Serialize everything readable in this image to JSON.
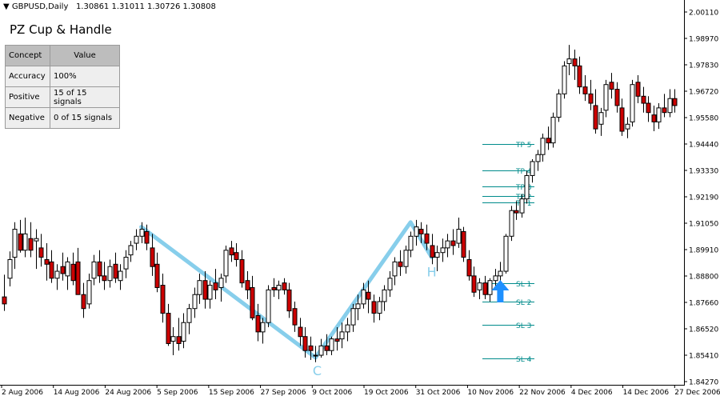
{
  "header": {
    "symbol_text": "GBPUSD,Daily",
    "ohlc_text": "1.30861 1.31011 1.30726 1.30808"
  },
  "panel": {
    "title": "PZ Cup & Handle",
    "columns": [
      "Concept",
      "Value"
    ],
    "rows": [
      {
        "concept": "Accuracy",
        "value": "100%"
      },
      {
        "concept": "Positive",
        "value": "15 of 15 signals"
      },
      {
        "concept": "Negative",
        "value": "0 of 15 signals"
      }
    ]
  },
  "colors": {
    "bull": "#ffffff",
    "bear": "#cc0000",
    "wick": "#000000",
    "pattern": "#87ceeb",
    "levels": "#008b8b",
    "signal_arrow": "#1e90ff",
    "accuracy_text": "#0000cc"
  },
  "chart_data": {
    "type": "candlestick",
    "y_ticks": [
      "2.00110",
      "1.98970",
      "1.97830",
      "1.96720",
      "1.95580",
      "1.94440",
      "1.93330",
      "1.92190",
      "1.91050",
      "1.89910",
      "1.88800",
      "1.87660",
      "1.86520",
      "1.85410",
      "1.84270"
    ],
    "ylim": [
      1.8427,
      2.0011
    ],
    "x_ticks": [
      "2 Aug 2006",
      "14 Aug 2006",
      "24 Aug 2006",
      "5 Sep 2006",
      "15 Sep 2006",
      "27 Sep 2006",
      "9 Oct 2006",
      "19 Oct 2006",
      "31 Oct 2006",
      "10 Nov 2006",
      "22 Nov 2006",
      "4 Dec 2006",
      "14 Dec 2006",
      "27 Dec 2006"
    ],
    "candles": [
      [
        1.879,
        1.8885,
        1.873,
        1.876
      ],
      [
        1.887,
        1.8985,
        1.8835,
        1.895
      ],
      [
        1.896,
        1.911,
        1.891,
        1.908
      ],
      [
        1.906,
        1.912,
        1.898,
        1.899
      ],
      [
        1.899,
        1.913,
        1.896,
        1.906
      ],
      [
        1.904,
        1.911,
        1.896,
        1.899
      ],
      [
        1.903,
        1.908,
        1.891,
        1.904
      ],
      [
        1.9,
        1.906,
        1.892,
        1.896
      ],
      [
        1.895,
        1.902,
        1.886,
        1.893
      ],
      [
        1.894,
        1.899,
        1.885,
        1.887
      ],
      [
        1.887,
        1.893,
        1.882,
        1.89
      ],
      [
        1.892,
        1.898,
        1.886,
        1.889
      ],
      [
        1.888,
        1.896,
        1.882,
        1.894
      ],
      [
        1.893,
        1.898,
        1.884,
        1.886
      ],
      [
        1.894,
        1.9,
        1.881,
        1.88
      ],
      [
        1.88,
        1.885,
        1.87,
        1.874
      ],
      [
        1.876,
        1.889,
        1.874,
        1.886
      ],
      [
        1.887,
        1.897,
        1.884,
        1.894
      ],
      [
        1.894,
        1.899,
        1.885,
        1.888
      ],
      [
        1.888,
        1.894,
        1.882,
        1.886
      ],
      [
        1.886,
        1.895,
        1.883,
        1.892
      ],
      [
        1.893,
        1.898,
        1.885,
        1.887
      ],
      [
        1.886,
        1.893,
        1.882,
        1.89
      ],
      [
        1.891,
        1.899,
        1.887,
        1.896
      ],
      [
        1.897,
        1.903,
        1.894,
        1.901
      ],
      [
        1.902,
        1.908,
        1.899,
        1.905
      ],
      [
        1.905,
        1.911,
        1.902,
        1.908
      ],
      [
        1.907,
        1.91,
        1.899,
        1.902
      ],
      [
        1.9,
        1.906,
        1.888,
        1.892
      ],
      [
        1.893,
        1.898,
        1.881,
        1.883
      ],
      [
        1.884,
        1.889,
        1.868,
        1.872
      ],
      [
        1.872,
        1.876,
        1.858,
        1.859
      ],
      [
        1.86,
        1.866,
        1.854,
        1.862
      ],
      [
        1.862,
        1.87,
        1.856,
        1.859
      ],
      [
        1.86,
        1.872,
        1.857,
        1.868
      ],
      [
        1.868,
        1.876,
        1.863,
        1.874
      ],
      [
        1.874,
        1.883,
        1.87,
        1.88
      ],
      [
        1.88,
        1.889,
        1.876,
        1.886
      ],
      [
        1.886,
        1.89,
        1.874,
        1.878
      ],
      [
        1.878,
        1.886,
        1.874,
        1.884
      ],
      [
        1.885,
        1.891,
        1.878,
        1.882
      ],
      [
        1.883,
        1.889,
        1.877,
        1.887
      ],
      [
        1.888,
        1.901,
        1.885,
        1.899
      ],
      [
        1.9,
        1.903,
        1.894,
        1.897
      ],
      [
        1.898,
        1.902,
        1.892,
        1.895
      ],
      [
        1.895,
        1.899,
        1.883,
        1.885
      ],
      [
        1.886,
        1.89,
        1.878,
        1.882
      ],
      [
        1.883,
        1.888,
        1.869,
        1.87
      ],
      [
        1.871,
        1.876,
        1.86,
        1.864
      ],
      [
        1.864,
        1.87,
        1.859,
        1.868
      ],
      [
        1.868,
        1.884,
        1.866,
        1.882
      ],
      [
        1.883,
        1.887,
        1.879,
        1.882
      ],
      [
        1.882,
        1.886,
        1.878,
        1.884
      ],
      [
        1.885,
        1.887,
        1.88,
        1.882
      ],
      [
        1.882,
        1.885,
        1.87,
        1.873
      ],
      [
        1.874,
        1.877,
        1.864,
        1.867
      ],
      [
        1.866,
        1.87,
        1.858,
        1.862
      ],
      [
        1.862,
        1.866,
        1.853,
        1.856
      ],
      [
        1.858,
        1.862,
        1.852,
        1.856
      ],
      [
        1.854,
        1.858,
        1.851,
        1.854
      ],
      [
        1.854,
        1.861,
        1.853,
        1.858
      ],
      [
        1.858,
        1.863,
        1.854,
        1.856
      ],
      [
        1.856,
        1.862,
        1.854,
        1.861
      ],
      [
        1.861,
        1.866,
        1.856,
        1.86
      ],
      [
        1.861,
        1.868,
        1.857,
        1.864
      ],
      [
        1.864,
        1.87,
        1.86,
        1.867
      ],
      [
        1.867,
        1.876,
        1.864,
        1.874
      ],
      [
        1.874,
        1.88,
        1.869,
        1.876
      ],
      [
        1.876,
        1.885,
        1.874,
        1.882
      ],
      [
        1.881,
        1.886,
        1.872,
        1.878
      ],
      [
        1.877,
        1.88,
        1.868,
        1.872
      ],
      [
        1.872,
        1.879,
        1.869,
        1.877
      ],
      [
        1.877,
        1.884,
        1.873,
        1.882
      ],
      [
        1.882,
        1.89,
        1.879,
        1.887
      ],
      [
        1.888,
        1.896,
        1.884,
        1.894
      ],
      [
        1.894,
        1.899,
        1.888,
        1.892
      ],
      [
        1.892,
        1.901,
        1.889,
        1.899
      ],
      [
        1.899,
        1.907,
        1.896,
        1.905
      ],
      [
        1.905,
        1.912,
        1.901,
        1.909
      ],
      [
        1.908,
        1.911,
        1.902,
        1.906
      ],
      [
        1.906,
        1.91,
        1.899,
        1.902
      ],
      [
        1.901,
        1.906,
        1.893,
        1.896
      ],
      [
        1.896,
        1.901,
        1.89,
        1.898
      ],
      [
        1.898,
        1.904,
        1.894,
        1.9
      ],
      [
        1.9,
        1.906,
        1.896,
        1.903
      ],
      [
        1.903,
        1.908,
        1.897,
        1.901
      ],
      [
        1.902,
        1.913,
        1.9,
        1.908
      ],
      [
        1.907,
        1.909,
        1.894,
        1.896
      ],
      [
        1.895,
        1.899,
        1.886,
        1.888
      ],
      [
        1.888,
        1.892,
        1.879,
        1.881
      ],
      [
        1.882,
        1.887,
        1.878,
        1.885
      ],
      [
        1.885,
        1.888,
        1.878,
        1.88
      ],
      [
        1.88,
        1.887,
        1.877,
        1.886
      ],
      [
        1.886,
        1.891,
        1.883,
        1.888
      ],
      [
        1.888,
        1.894,
        1.885,
        1.89
      ],
      [
        1.89,
        1.906,
        1.889,
        1.905
      ],
      [
        1.905,
        1.918,
        1.903,
        1.916
      ],
      [
        1.916,
        1.92,
        1.912,
        1.915
      ],
      [
        1.915,
        1.923,
        1.913,
        1.921
      ],
      [
        1.921,
        1.933,
        1.919,
        1.931
      ],
      [
        1.931,
        1.938,
        1.928,
        1.937
      ],
      [
        1.937,
        1.942,
        1.933,
        1.94
      ],
      [
        1.94,
        1.949,
        1.937,
        1.947
      ],
      [
        1.947,
        1.952,
        1.942,
        1.945
      ],
      [
        1.945,
        1.958,
        1.943,
        1.956
      ],
      [
        1.956,
        1.968,
        1.954,
        1.966
      ],
      [
        1.966,
        1.98,
        1.964,
        1.978
      ],
      [
        1.979,
        1.987,
        1.974,
        1.981
      ],
      [
        1.981,
        1.985,
        1.972,
        1.978
      ],
      [
        1.978,
        1.982,
        1.966,
        1.969
      ],
      [
        1.969,
        1.974,
        1.963,
        1.966
      ],
      [
        1.966,
        1.972,
        1.959,
        1.962
      ],
      [
        1.961,
        1.968,
        1.949,
        1.951
      ],
      [
        1.953,
        1.96,
        1.948,
        1.958
      ],
      [
        1.959,
        1.972,
        1.956,
        1.97
      ],
      [
        1.971,
        1.975,
        1.964,
        1.968
      ],
      [
        1.968,
        1.971,
        1.958,
        1.961
      ],
      [
        1.96,
        1.964,
        1.948,
        1.95
      ],
      [
        1.951,
        1.956,
        1.947,
        1.953
      ],
      [
        1.954,
        1.972,
        1.952,
        1.97
      ],
      [
        1.971,
        1.974,
        1.962,
        1.965
      ],
      [
        1.965,
        1.969,
        1.958,
        1.962
      ],
      [
        1.962,
        1.965,
        1.954,
        1.958
      ],
      [
        1.957,
        1.961,
        1.95,
        1.954
      ],
      [
        1.954,
        1.962,
        1.951,
        1.96
      ],
      [
        1.96,
        1.966,
        1.956,
        1.958
      ],
      [
        1.958,
        1.968,
        1.956,
        1.964
      ],
      [
        1.964,
        1.968,
        1.958,
        1.961
      ]
    ],
    "pattern_labels": {
      "cup_bottom": "C",
      "handle": "H"
    },
    "levels": [
      {
        "label": "TP 5",
        "price": 1.9444
      },
      {
        "label": "TP 4",
        "price": 1.9333
      },
      {
        "label": "TP 3",
        "price": 1.9262
      },
      {
        "label": "TP 2",
        "price": 1.9224
      },
      {
        "label": "TP 1",
        "price": 1.9195
      },
      {
        "label": "SL 1",
        "price": 1.8848
      },
      {
        "label": "SL 2",
        "price": 1.8771
      },
      {
        "label": "SL 3",
        "price": 1.867
      },
      {
        "label": "SL 4",
        "price": 1.8526
      }
    ],
    "cup_points": [
      {
        "i": 26,
        "price": 1.909
      },
      {
        "i": 59,
        "price": 1.853
      },
      {
        "i": 77,
        "price": 1.911
      },
      {
        "i": 81,
        "price": 1.896
      }
    ],
    "signal": {
      "i": 94,
      "price": 1.889
    },
    "grid": false
  }
}
